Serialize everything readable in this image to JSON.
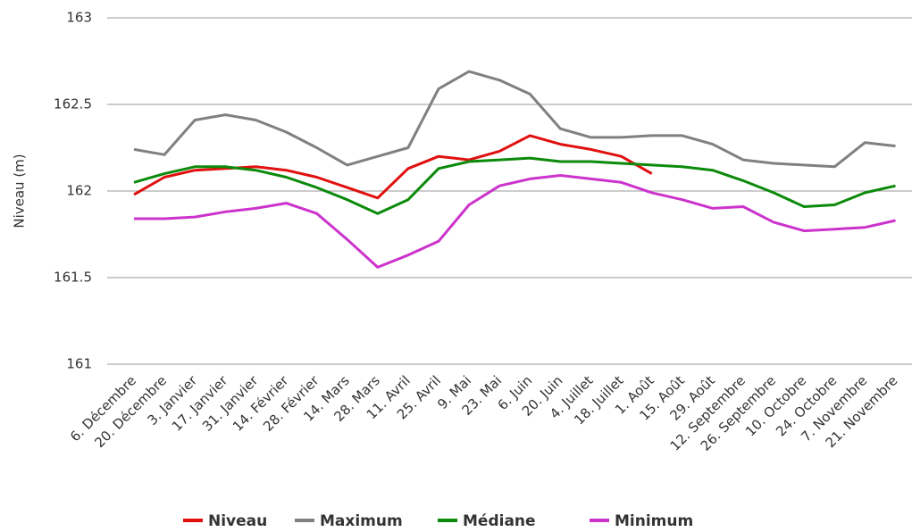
{
  "chart_data": {
    "type": "line",
    "y_label": "Niveau (m)",
    "categories": [
      "6. Décembre",
      "20. Décembre",
      "3. Janvier",
      "17. Janvier",
      "31. Janvier",
      "14. Février",
      "28. Février",
      "14. Mars",
      "28. Mars",
      "11. Avril",
      "25. Avril",
      "9. Mai",
      "23. Mai",
      "6. Juin",
      "20. Juin",
      "4. Juillet",
      "18. Juillet",
      "1. Août",
      "15. Août",
      "29. Août",
      "12. Septembre",
      "26. Septembre",
      "10. Octobre",
      "24. Octobre",
      "7. Novembre",
      "21. Novembre"
    ],
    "series": [
      {
        "name": "Niveau",
        "color": "#e0100f",
        "values": [
          161.98,
          162.08,
          162.12,
          162.13,
          162.14,
          162.12,
          162.08,
          162.02,
          161.96,
          162.13,
          162.2,
          162.18,
          162.23,
          162.32,
          162.27,
          162.24,
          162.2,
          162.1,
          null,
          null,
          null,
          null,
          null,
          null,
          null,
          null
        ]
      },
      {
        "name": "Maximum",
        "color": "#808080",
        "values": [
          162.24,
          162.21,
          162.41,
          162.44,
          162.41,
          162.34,
          162.25,
          162.15,
          162.2,
          162.25,
          162.59,
          162.69,
          162.64,
          162.56,
          162.36,
          162.31,
          162.31,
          162.32,
          162.32,
          162.27,
          162.18,
          162.16,
          162.15,
          162.14,
          162.28,
          162.26
        ]
      },
      {
        "name": "Médiane",
        "color": "#0b8a0b",
        "values": [
          162.05,
          162.1,
          162.14,
          162.14,
          162.12,
          162.08,
          162.02,
          161.95,
          161.87,
          161.95,
          162.13,
          162.17,
          162.18,
          162.19,
          162.17,
          162.17,
          162.16,
          162.15,
          162.14,
          162.12,
          162.06,
          161.99,
          161.91,
          161.92,
          161.99,
          162.03
        ]
      },
      {
        "name": "Minimum",
        "color": "#cc33cc",
        "values": [
          161.84,
          161.84,
          161.85,
          161.88,
          161.9,
          161.93,
          161.87,
          161.72,
          161.56,
          161.63,
          161.71,
          161.92,
          162.03,
          162.07,
          162.09,
          162.07,
          162.05,
          161.99,
          161.95,
          161.9,
          161.91,
          161.82,
          161.77,
          161.78,
          161.79,
          161.83
        ]
      }
    ],
    "ylim": [
      161,
      163
    ],
    "yticks": [
      161,
      161.5,
      162,
      162.5,
      163
    ],
    "grid": true,
    "legend": "bottom"
  }
}
